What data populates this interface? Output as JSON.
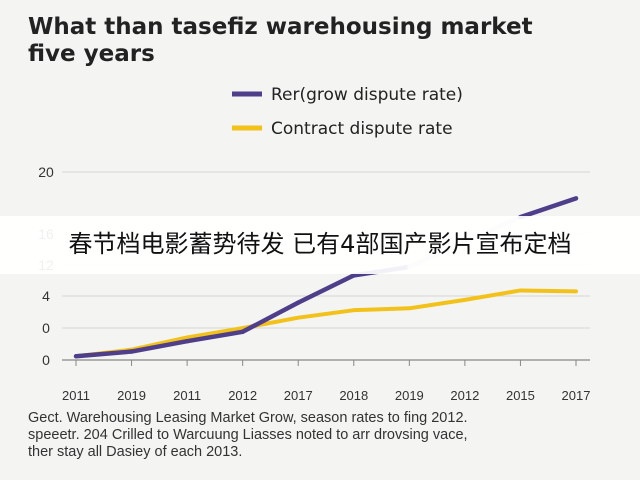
{
  "chart_data": {
    "type": "line",
    "title_line1": "What than tasefiz warehousing market",
    "title_line2": "five years",
    "categories": [
      "2011",
      "2019",
      "2011",
      "2012",
      "2017",
      "2018",
      "2019",
      "2012",
      "2015",
      "2017"
    ],
    "y_ticks": [
      "20",
      "16",
      "12",
      "4",
      "0",
      "0"
    ],
    "series": [
      {
        "name": "Rer(grow dispute rate)",
        "color": "#4f3f8a",
        "faded_color": "#cfcce0",
        "values": [
          0.4,
          0.9,
          2.0,
          3.0,
          6.1,
          9.0,
          9.9,
          12.6,
          15.2,
          17.2
        ]
      },
      {
        "name": "Contract dispute rate",
        "color": "#f2c21b",
        "values": [
          0.4,
          1.1,
          2.4,
          3.4,
          4.5,
          5.3,
          5.5,
          6.4,
          7.4,
          7.3
        ]
      }
    ],
    "grid": "horizontal",
    "legend_position": "top-right"
  },
  "caption": {
    "line1": "Gect. Warehousing Leasing Market Grow, season rates to fing 2012.",
    "line2": "speeetr. 204 Crilled to Warcuung Liasses noted to arr drovsing vace,",
    "line3": "ther stay all Dasiey of each 2013."
  },
  "overlay": {
    "text": "春节档电影蓄势待发 已有4部国产影片宣布定档"
  }
}
